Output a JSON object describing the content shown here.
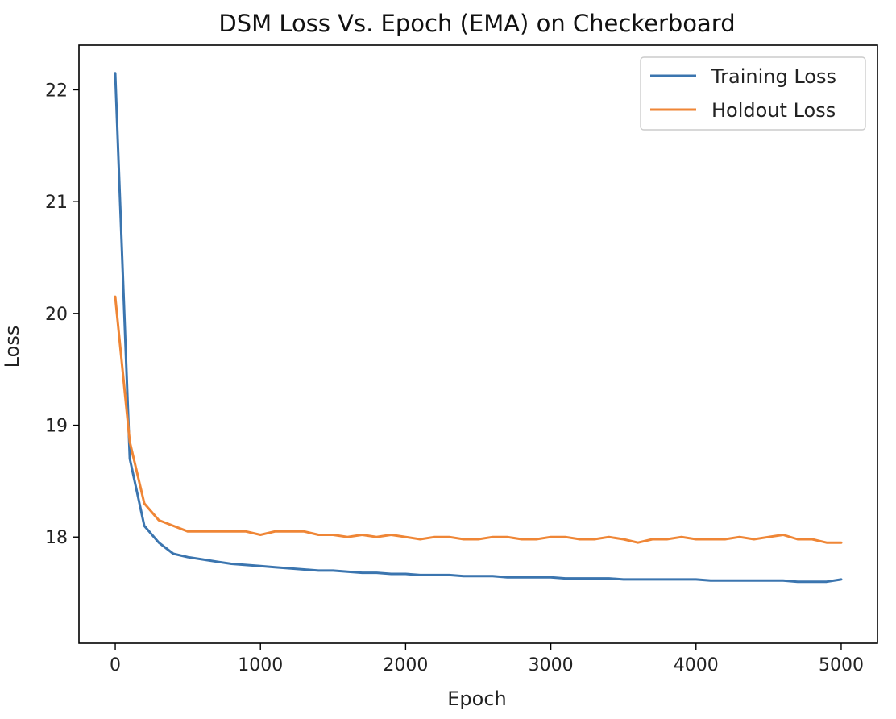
{
  "chart_data": {
    "type": "line",
    "title": "DSM Loss Vs. Epoch (EMA) on Checkerboard",
    "xlabel": "Epoch",
    "ylabel": "Loss",
    "xlim": [
      -250,
      5250
    ],
    "ylim": [
      17.05,
      22.4
    ],
    "xticks": [
      0,
      1000,
      2000,
      3000,
      4000,
      5000
    ],
    "yticks": [
      18,
      19,
      20,
      21,
      22
    ],
    "grid": false,
    "legend_position": "top-right",
    "x": [
      0,
      100,
      200,
      300,
      400,
      500,
      600,
      700,
      800,
      900,
      1000,
      1100,
      1200,
      1300,
      1400,
      1500,
      1600,
      1700,
      1800,
      1900,
      2000,
      2100,
      2200,
      2300,
      2400,
      2500,
      2600,
      2700,
      2800,
      2900,
      3000,
      3100,
      3200,
      3300,
      3400,
      3500,
      3600,
      3700,
      3800,
      3900,
      4000,
      4100,
      4200,
      4300,
      4400,
      4500,
      4600,
      4700,
      4800,
      4900,
      5000
    ],
    "series": [
      {
        "name": "Training Loss",
        "color": "#3b75af",
        "values": [
          22.15,
          18.7,
          18.1,
          17.95,
          17.85,
          17.82,
          17.8,
          17.78,
          17.76,
          17.75,
          17.74,
          17.73,
          17.72,
          17.71,
          17.7,
          17.7,
          17.69,
          17.68,
          17.68,
          17.67,
          17.67,
          17.66,
          17.66,
          17.66,
          17.65,
          17.65,
          17.65,
          17.64,
          17.64,
          17.64,
          17.64,
          17.63,
          17.63,
          17.63,
          17.63,
          17.62,
          17.62,
          17.62,
          17.62,
          17.62,
          17.62,
          17.61,
          17.61,
          17.61,
          17.61,
          17.61,
          17.61,
          17.6,
          17.6,
          17.6,
          17.62
        ]
      },
      {
        "name": "Holdout Loss",
        "color": "#ef8636",
        "values": [
          20.15,
          18.85,
          18.3,
          18.15,
          18.1,
          18.05,
          18.05,
          18.05,
          18.05,
          18.05,
          18.02,
          18.05,
          18.05,
          18.05,
          18.02,
          18.02,
          18.0,
          18.02,
          18.0,
          18.02,
          18.0,
          17.98,
          18.0,
          18.0,
          17.98,
          17.98,
          18.0,
          18.0,
          17.98,
          17.98,
          18.0,
          18.0,
          17.98,
          17.98,
          18.0,
          17.98,
          17.95,
          17.98,
          17.98,
          18.0,
          17.98,
          17.98,
          17.98,
          18.0,
          17.98,
          18.0,
          18.02,
          17.98,
          17.98,
          17.95,
          17.95
        ]
      }
    ]
  }
}
